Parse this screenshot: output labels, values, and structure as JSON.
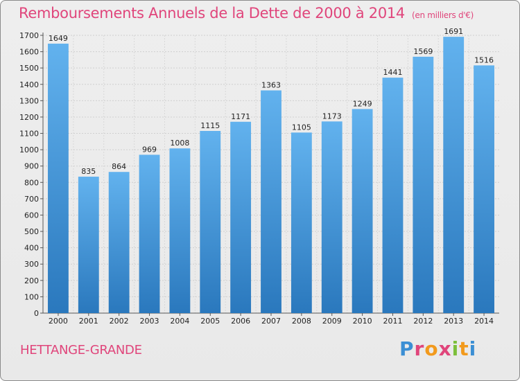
{
  "header": {
    "title": "Remboursements Annuels de la Dette de 2000 à 2014",
    "unit": "(en milliers d'€)"
  },
  "footer": {
    "commune": "HETTANGE-GRANDE",
    "brand": "Proxiti"
  },
  "colors": {
    "accent": "#e0457b",
    "bar_top": "#62b2ee",
    "bar_bottom": "#2a78bd"
  },
  "chart_data": {
    "type": "bar",
    "title": "Remboursements Annuels de la Dette de 2000 à 2014",
    "subtitle": "(en milliers d'€)",
    "xlabel": "",
    "ylabel": "",
    "categories": [
      "2000",
      "2001",
      "2002",
      "2003",
      "2004",
      "2005",
      "2006",
      "2007",
      "2008",
      "2009",
      "2010",
      "2011",
      "2012",
      "2013",
      "2014"
    ],
    "values": [
      1649,
      835,
      864,
      969,
      1008,
      1115,
      1171,
      1363,
      1105,
      1173,
      1249,
      1441,
      1569,
      1691,
      1516
    ],
    "ylim": [
      0,
      1700
    ],
    "yticks": [
      0,
      100,
      200,
      300,
      400,
      500,
      600,
      700,
      800,
      900,
      1000,
      1100,
      1200,
      1300,
      1400,
      1500,
      1600,
      1700
    ],
    "grid": true,
    "legend": "none"
  }
}
